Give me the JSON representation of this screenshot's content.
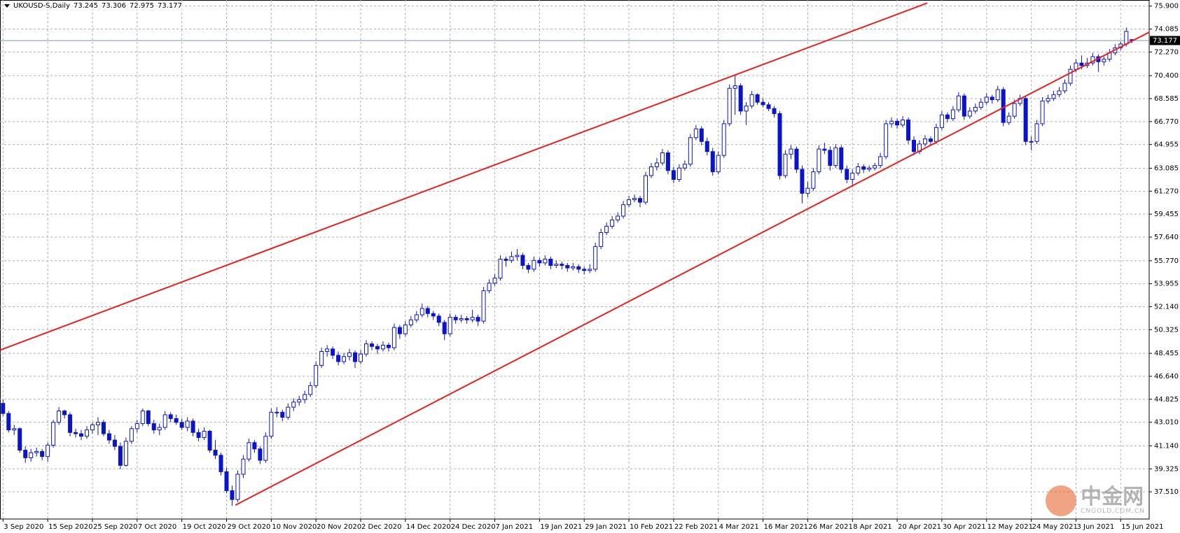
{
  "chart_data": {
    "type": "candlestick",
    "title": "UKOUSD-S,Daily",
    "color": "#0a14c8",
    "grid": true,
    "ylim": [
      35.36,
      76.38
    ],
    "yticks": [
      {
        "value": 75.9,
        "label": "75.900"
      },
      74.085,
      {
        "value": 72.27,
        "label": "72.270"
      },
      {
        "value": 70.4,
        "label": "70.400"
      },
      68.585,
      {
        "value": 66.77,
        "label": "66.770"
      },
      64.955,
      63.085,
      {
        "value": 61.27,
        "label": "61.270"
      },
      59.455,
      {
        "value": 57.64,
        "label": "57.640"
      },
      {
        "value": 55.77,
        "label": "55.770"
      },
      53.955,
      {
        "value": 52.14,
        "label": "52.140"
      },
      50.325,
      48.455,
      {
        "value": 46.64,
        "label": "46.640"
      },
      44.825,
      {
        "value": 43.01,
        "label": "43.010"
      },
      {
        "value": 41.14,
        "label": "41.140"
      },
      39.325,
      {
        "value": 37.51,
        "label": "37.510"
      }
    ],
    "categories": [
      "3 Sep 2020",
      null,
      null,
      null,
      null,
      null,
      null,
      null,
      "15 Sep 2020",
      null,
      null,
      null,
      null,
      null,
      null,
      null,
      "25 Sep 2020",
      null,
      null,
      null,
      null,
      null,
      null,
      null,
      "7 Oct 2020",
      null,
      null,
      null,
      null,
      null,
      null,
      null,
      "19 Oct 2020",
      null,
      null,
      null,
      null,
      null,
      null,
      null,
      "29 Oct 2020",
      null,
      null,
      null,
      null,
      null,
      null,
      null,
      "10 Nov 2020",
      null,
      null,
      null,
      null,
      null,
      null,
      null,
      "20 Nov 2020",
      null,
      null,
      null,
      null,
      null,
      null,
      null,
      "2 Dec 2020",
      null,
      null,
      null,
      null,
      null,
      null,
      null,
      "14 Dec 2020",
      null,
      null,
      null,
      null,
      null,
      null,
      null,
      "24 Dec 2020",
      null,
      null,
      null,
      null,
      null,
      null,
      null,
      "7 Jan 2021",
      null,
      null,
      null,
      null,
      null,
      null,
      null,
      "19 Jan 2021",
      null,
      null,
      null,
      null,
      null,
      null,
      null,
      "29 Jan 2021",
      null,
      null,
      null,
      null,
      null,
      null,
      null,
      "10 Feb 2021",
      null,
      null,
      null,
      null,
      null,
      null,
      null,
      "22 Feb 2021",
      null,
      null,
      null,
      null,
      null,
      null,
      null,
      "4 Mar 2021",
      null,
      null,
      null,
      null,
      null,
      null,
      null,
      "16 Mar 2021",
      null,
      null,
      null,
      null,
      null,
      null,
      null,
      "26 Mar 2021",
      null,
      null,
      null,
      null,
      null,
      null,
      null,
      "8 Apr 2021",
      null,
      null,
      null,
      null,
      null,
      null,
      null,
      "20 Apr 2021",
      null,
      null,
      null,
      null,
      null,
      null,
      null,
      "30 Apr 2021",
      null,
      null,
      null,
      null,
      null,
      null,
      null,
      "12 May 2021",
      null,
      null,
      null,
      null,
      null,
      null,
      null,
      "24 May 2021",
      null,
      null,
      null,
      null,
      null,
      null,
      null,
      "3 Jun 2021",
      null,
      null,
      null,
      null,
      null,
      null,
      null,
      "15 Jun 2021",
      null,
      null
    ],
    "candles": [
      [
        44.5,
        44.8,
        43.5,
        43.7
      ],
      [
        43.7,
        43.9,
        42.2,
        42.4
      ],
      [
        42.4,
        42.8,
        42.0,
        42.5
      ],
      [
        42.5,
        42.6,
        40.6,
        40.8
      ],
      [
        40.8,
        41.1,
        39.8,
        40.2
      ],
      [
        40.2,
        40.9,
        39.9,
        40.6
      ],
      [
        40.6,
        41.0,
        40.3,
        40.7
      ],
      [
        40.7,
        40.9,
        40.0,
        40.3
      ],
      [
        40.3,
        41.4,
        39.9,
        41.2
      ],
      [
        41.2,
        43.2,
        41.0,
        43.0
      ],
      [
        43.0,
        44.2,
        42.8,
        43.9
      ],
      [
        43.9,
        44.0,
        43.3,
        43.6
      ],
      [
        43.6,
        43.8,
        41.9,
        42.2
      ],
      [
        42.2,
        42.5,
        41.8,
        42.1
      ],
      [
        42.1,
        42.4,
        41.6,
        41.9
      ],
      [
        41.9,
        42.7,
        41.7,
        42.4
      ],
      [
        42.4,
        43.0,
        42.1,
        42.8
      ],
      [
        42.8,
        43.4,
        42.0,
        43.0
      ],
      [
        43.0,
        43.2,
        41.9,
        42.1
      ],
      [
        42.1,
        42.4,
        41.3,
        41.6
      ],
      [
        41.6,
        42.0,
        40.8,
        41.1
      ],
      [
        41.1,
        41.4,
        39.3,
        39.6
      ],
      [
        39.6,
        41.8,
        39.5,
        41.5
      ],
      [
        41.5,
        42.7,
        41.3,
        42.5
      ],
      [
        42.5,
        43.2,
        42.2,
        42.9
      ],
      [
        42.9,
        44.1,
        42.7,
        43.9
      ],
      [
        43.9,
        44.0,
        42.7,
        42.9
      ],
      [
        42.9,
        43.2,
        42.1,
        42.4
      ],
      [
        42.4,
        42.9,
        42.0,
        42.6
      ],
      [
        42.6,
        43.9,
        42.4,
        43.6
      ],
      [
        43.6,
        43.8,
        43.0,
        43.3
      ],
      [
        43.3,
        43.6,
        42.8,
        43.0
      ],
      [
        43.0,
        43.3,
        42.4,
        42.6
      ],
      [
        42.6,
        43.4,
        42.3,
        43.1
      ],
      [
        43.1,
        43.3,
        41.9,
        42.2
      ],
      [
        42.2,
        42.5,
        41.5,
        41.8
      ],
      [
        41.8,
        42.6,
        41.6,
        42.3
      ],
      [
        42.3,
        42.4,
        40.6,
        40.8
      ],
      [
        40.8,
        41.6,
        40.1,
        40.4
      ],
      [
        40.4,
        40.6,
        38.8,
        39.1
      ],
      [
        39.1,
        39.4,
        37.4,
        37.6
      ],
      [
        37.6,
        38.0,
        36.4,
        36.9
      ],
      [
        36.9,
        39.2,
        36.7,
        38.9
      ],
      [
        38.9,
        40.4,
        38.6,
        40.1
      ],
      [
        40.1,
        41.7,
        39.9,
        41.4
      ],
      [
        41.4,
        41.6,
        40.6,
        40.9
      ],
      [
        40.9,
        41.1,
        39.7,
        40.0
      ],
      [
        40.0,
        42.2,
        39.8,
        41.9
      ],
      [
        41.9,
        44.1,
        41.7,
        43.8
      ],
      [
        43.8,
        44.2,
        43.4,
        43.8
      ],
      [
        43.8,
        44.0,
        43.1,
        43.4
      ],
      [
        43.4,
        44.5,
        43.2,
        44.2
      ],
      [
        44.2,
        44.9,
        43.9,
        44.6
      ],
      [
        44.6,
        45.1,
        44.3,
        44.8
      ],
      [
        44.8,
        45.5,
        44.5,
        45.2
      ],
      [
        45.2,
        46.2,
        45.0,
        45.9
      ],
      [
        45.9,
        47.8,
        45.7,
        47.5
      ],
      [
        47.5,
        48.9,
        47.3,
        48.6
      ],
      [
        48.6,
        49.1,
        48.2,
        48.8
      ],
      [
        48.8,
        49.0,
        48.0,
        48.3
      ],
      [
        48.3,
        48.6,
        47.5,
        47.8
      ],
      [
        47.8,
        48.5,
        47.6,
        48.2
      ],
      [
        48.2,
        48.8,
        47.9,
        48.5
      ],
      [
        48.5,
        48.7,
        47.3,
        47.8
      ],
      [
        47.8,
        48.7,
        47.6,
        48.4
      ],
      [
        48.4,
        49.5,
        48.2,
        49.2
      ],
      [
        49.2,
        49.4,
        48.7,
        49.0
      ],
      [
        49.0,
        49.2,
        48.4,
        48.8
      ],
      [
        48.8,
        49.4,
        48.6,
        49.1
      ],
      [
        49.1,
        49.3,
        48.6,
        48.9
      ],
      [
        48.9,
        50.8,
        48.7,
        50.5
      ],
      [
        50.5,
        50.7,
        49.6,
        50.0
      ],
      [
        50.0,
        51.0,
        49.8,
        50.7
      ],
      [
        50.7,
        51.4,
        50.5,
        51.1
      ],
      [
        51.1,
        51.8,
        50.9,
        51.5
      ],
      [
        51.5,
        52.4,
        51.3,
        52.0
      ],
      [
        52.0,
        52.2,
        51.3,
        51.6
      ],
      [
        51.6,
        51.8,
        51.1,
        51.4
      ],
      [
        51.4,
        51.6,
        50.6,
        50.9
      ],
      [
        50.9,
        51.1,
        49.5,
        50.0
      ],
      [
        50.0,
        51.6,
        49.8,
        51.3
      ],
      [
        51.3,
        51.5,
        50.8,
        51.1
      ],
      [
        51.1,
        51.5,
        50.9,
        51.2
      ],
      [
        51.2,
        51.4,
        50.8,
        51.1
      ],
      [
        51.1,
        51.9,
        50.9,
        51.3
      ],
      [
        51.3,
        51.5,
        50.6,
        51.0
      ],
      [
        51.0,
        53.7,
        50.8,
        53.4
      ],
      [
        53.4,
        54.3,
        53.2,
        54.0
      ],
      [
        54.0,
        54.7,
        53.8,
        54.4
      ],
      [
        54.4,
        56.2,
        54.2,
        55.9
      ],
      [
        55.9,
        56.1,
        55.3,
        55.8
      ],
      [
        55.8,
        56.5,
        55.6,
        56.1
      ],
      [
        56.1,
        56.7,
        55.8,
        56.2
      ],
      [
        56.2,
        56.4,
        55.1,
        55.4
      ],
      [
        55.4,
        55.6,
        54.8,
        55.1
      ],
      [
        55.1,
        56.1,
        54.9,
        55.8
      ],
      [
        55.8,
        56.0,
        55.3,
        55.6
      ],
      [
        55.6,
        56.2,
        55.4,
        55.9
      ],
      [
        55.9,
        56.1,
        55.1,
        55.4
      ],
      [
        55.4,
        55.8,
        55.2,
        55.5
      ],
      [
        55.5,
        55.7,
        55.1,
        55.4
      ],
      [
        55.4,
        55.6,
        54.9,
        55.2
      ],
      [
        55.2,
        55.6,
        55.0,
        55.3
      ],
      [
        55.3,
        55.5,
        54.8,
        55.1
      ],
      [
        55.1,
        55.3,
        54.7,
        55.0
      ],
      [
        55.0,
        55.5,
        54.8,
        55.1
      ],
      [
        55.1,
        57.2,
        54.9,
        56.9
      ],
      [
        56.9,
        58.3,
        56.7,
        58.0
      ],
      [
        58.0,
        58.8,
        57.8,
        58.5
      ],
      [
        58.5,
        59.3,
        58.3,
        59.0
      ],
      [
        59.0,
        59.6,
        58.8,
        59.3
      ],
      [
        59.3,
        60.5,
        59.1,
        60.2
      ],
      [
        60.2,
        60.9,
        60.0,
        60.6
      ],
      [
        60.6,
        61.0,
        60.4,
        60.7
      ],
      [
        60.7,
        60.9,
        60.0,
        60.4
      ],
      [
        60.4,
        62.8,
        60.2,
        62.5
      ],
      [
        62.5,
        63.5,
        62.3,
        63.2
      ],
      [
        63.2,
        63.9,
        62.9,
        63.5
      ],
      [
        63.5,
        64.6,
        63.3,
        64.3
      ],
      [
        64.3,
        64.5,
        62.6,
        62.9
      ],
      [
        62.9,
        63.2,
        61.9,
        62.2
      ],
      [
        62.2,
        63.4,
        62.0,
        63.1
      ],
      [
        63.1,
        63.7,
        62.9,
        63.4
      ],
      [
        63.4,
        65.8,
        63.2,
        65.5
      ],
      [
        65.5,
        66.5,
        65.3,
        66.2
      ],
      [
        66.2,
        66.4,
        64.9,
        65.2
      ],
      [
        65.2,
        65.5,
        64.1,
        64.4
      ],
      [
        64.4,
        64.7,
        62.5,
        62.8
      ],
      [
        62.8,
        64.4,
        62.6,
        64.1
      ],
      [
        64.1,
        66.9,
        63.9,
        66.6
      ],
      [
        66.6,
        69.7,
        66.4,
        69.4
      ],
      [
        69.4,
        70.5,
        67.3,
        69.6
      ],
      [
        69.6,
        69.8,
        67.3,
        67.6
      ],
      [
        67.6,
        68.3,
        66.5,
        68.0
      ],
      [
        68.0,
        69.2,
        67.8,
        68.9
      ],
      [
        68.9,
        69.0,
        68.1,
        68.3
      ],
      [
        68.3,
        68.6,
        67.9,
        68.1
      ],
      [
        68.1,
        68.3,
        67.6,
        67.8
      ],
      [
        67.8,
        68.0,
        67.1,
        67.4
      ],
      [
        67.4,
        67.6,
        62.2,
        62.5
      ],
      [
        62.5,
        64.5,
        62.3,
        64.2
      ],
      [
        64.2,
        64.9,
        63.8,
        64.6
      ],
      [
        64.6,
        64.8,
        62.7,
        63.0
      ],
      [
        63.0,
        63.3,
        60.3,
        61.1
      ],
      [
        61.1,
        62.0,
        60.8,
        61.5
      ],
      [
        61.5,
        63.1,
        61.3,
        62.8
      ],
      [
        62.8,
        64.9,
        62.6,
        64.6
      ],
      [
        64.6,
        65.1,
        64.2,
        64.5
      ],
      [
        64.5,
        64.8,
        62.9,
        63.3
      ],
      [
        63.3,
        65.0,
        63.1,
        64.7
      ],
      [
        64.7,
        64.9,
        62.7,
        63.0
      ],
      [
        63.0,
        63.3,
        61.9,
        62.2
      ],
      [
        62.2,
        63.0,
        61.6,
        62.7
      ],
      [
        62.7,
        63.5,
        62.5,
        63.2
      ],
      [
        63.2,
        63.4,
        62.7,
        63.0
      ],
      [
        63.0,
        63.3,
        62.8,
        63.1
      ],
      [
        63.1,
        63.5,
        62.9,
        63.3
      ],
      [
        63.3,
        64.3,
        63.1,
        64.0
      ],
      [
        64.0,
        66.9,
        63.8,
        66.6
      ],
      [
        66.6,
        67.1,
        66.3,
        66.8
      ],
      [
        66.8,
        67.0,
        66.2,
        66.5
      ],
      [
        66.5,
        67.2,
        66.3,
        66.9
      ],
      [
        66.9,
        67.1,
        65.0,
        65.3
      ],
      [
        65.3,
        65.6,
        64.1,
        64.4
      ],
      [
        64.4,
        65.3,
        64.2,
        65.0
      ],
      [
        65.0,
        65.7,
        64.8,
        65.4
      ],
      [
        65.4,
        65.6,
        64.9,
        65.2
      ],
      [
        65.2,
        66.6,
        65.0,
        66.3
      ],
      [
        66.3,
        67.6,
        66.1,
        67.3
      ],
      [
        67.3,
        67.5,
        66.7,
        67.0
      ],
      [
        67.0,
        68.0,
        66.8,
        67.7
      ],
      [
        67.7,
        69.1,
        67.5,
        68.8
      ],
      [
        68.8,
        69.0,
        66.9,
        67.2
      ],
      [
        67.2,
        67.9,
        67.0,
        67.6
      ],
      [
        67.6,
        68.2,
        67.4,
        67.9
      ],
      [
        67.9,
        68.6,
        67.7,
        68.3
      ],
      [
        68.3,
        69.0,
        68.1,
        68.7
      ],
      [
        68.7,
        68.9,
        68.2,
        68.5
      ],
      [
        68.5,
        69.6,
        68.3,
        69.3
      ],
      [
        69.3,
        69.5,
        66.4,
        66.7
      ],
      [
        66.7,
        67.5,
        66.5,
        67.2
      ],
      [
        67.2,
        68.5,
        67.0,
        68.2
      ],
      [
        68.2,
        68.9,
        68.0,
        68.6
      ],
      [
        68.6,
        68.8,
        64.9,
        65.2
      ],
      [
        65.2,
        65.6,
        64.5,
        65.2
      ],
      [
        65.2,
        66.9,
        65.0,
        66.6
      ],
      [
        66.6,
        68.7,
        66.4,
        68.4
      ],
      [
        68.4,
        68.9,
        68.2,
        68.6
      ],
      [
        68.6,
        69.2,
        68.4,
        68.9
      ],
      [
        68.9,
        69.5,
        68.7,
        69.2
      ],
      [
        69.2,
        70.1,
        69.0,
        69.8
      ],
      [
        69.8,
        71.2,
        69.6,
        70.9
      ],
      [
        70.9,
        71.7,
        70.7,
        71.4
      ],
      [
        71.4,
        72.0,
        70.9,
        71.2
      ],
      [
        71.2,
        71.8,
        71.0,
        71.4
      ],
      [
        71.4,
        72.2,
        71.2,
        71.9
      ],
      [
        71.9,
        72.1,
        70.7,
        71.5
      ],
      [
        71.5,
        71.9,
        71.2,
        71.7
      ],
      [
        71.7,
        72.5,
        71.5,
        72.2
      ],
      [
        72.2,
        72.9,
        72.0,
        72.6
      ],
      [
        72.6,
        73.1,
        72.4,
        72.9
      ],
      [
        72.9,
        74.2,
        72.7,
        73.9
      ],
      [
        73.245,
        73.306,
        72.975,
        73.177
      ]
    ],
    "trendlines": [
      {
        "color": "#e8211d",
        "points": [
          [
            -0.54,
            48.71
          ],
          [
            165.4,
            76.14
          ]
        ]
      },
      {
        "color": "#e8211d",
        "points": [
          [
            41.6,
            36.46
          ],
          [
            205.8,
            74.0
          ]
        ]
      }
    ],
    "watermark": "中金网",
    "watermark_sub": "CNGOLD.COM.CN"
  }
}
